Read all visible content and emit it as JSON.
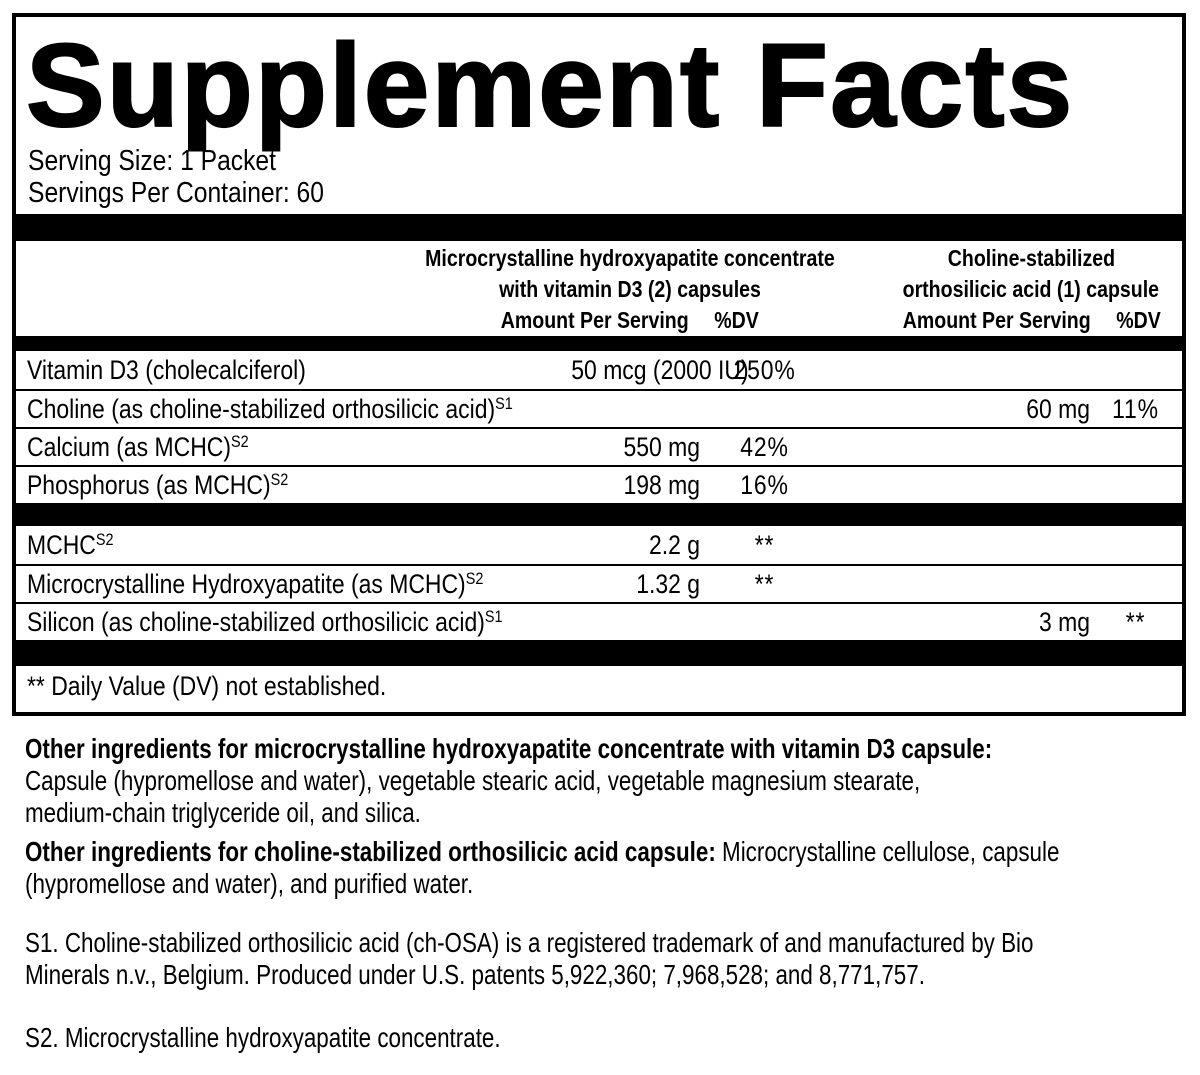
{
  "colors": {
    "ink": "#000000",
    "paper": "#ffffff"
  },
  "panel": {
    "title": "Supplement Facts",
    "serving_size": "Serving Size: 1 Packet",
    "servings_per_container": "Servings Per Container: 60",
    "column_groups": [
      {
        "name_line1": "Microcrystalline hydroxyapatite concentrate",
        "name_line2": "with vitamin D3 (2) capsules",
        "amount_header": "Amount Per Serving",
        "dv_header": "%DV"
      },
      {
        "name_line1": "Choline-stabilized",
        "name_line2": "orthosilicic acid (1) capsule",
        "amount_header": "Amount Per Serving",
        "dv_header": "%DV"
      }
    ],
    "rows": [
      {
        "label": "Vitamin D3 (cholecalciferol)",
        "sup": "",
        "c1_amount": "50 mcg (2000 IU)",
        "c1_dv": "250%",
        "c2_amount": "",
        "c2_dv": ""
      },
      {
        "label": "Choline (as choline-stabilized orthosilicic acid)",
        "sup": "S1",
        "c1_amount": "",
        "c1_dv": "",
        "c2_amount": "60 mg",
        "c2_dv": "11%"
      },
      {
        "label": "Calcium (as MCHC)",
        "sup": "S2",
        "c1_amount": "550 mg",
        "c1_dv": "42%",
        "c2_amount": "",
        "c2_dv": ""
      },
      {
        "label": "Phosphorus (as MCHC)",
        "sup": "S2",
        "c1_amount": "198 mg",
        "c1_dv": "16%",
        "c2_amount": "",
        "c2_dv": ""
      },
      {
        "label": "MCHC",
        "sup": "S2",
        "c1_amount": "2.2 g",
        "c1_dv": "**",
        "c2_amount": "",
        "c2_dv": ""
      },
      {
        "label": "Microcrystalline Hydroxyapatite (as MCHC)",
        "sup": "S2",
        "c1_amount": "1.32 g",
        "c1_dv": "**",
        "c2_amount": "",
        "c2_dv": ""
      },
      {
        "label": "Silicon (as choline-stabilized orthosilicic acid)",
        "sup": "S1",
        "c1_amount": "",
        "c1_dv": "",
        "c2_amount": "3 mg",
        "c2_dv": "**"
      }
    ],
    "dv_note": "** Daily Value (DV) not established."
  },
  "other_ingredients": [
    {
      "lines": [
        {
          "bold": "Other ingredients for microcrystalline hydroxyapatite concentrate with vitamin D3 capsule:",
          "regular": ""
        },
        {
          "bold": "",
          "regular": "Capsule (hypromellose and water), vegetable stearic acid, vegetable magnesium stearate,"
        },
        {
          "bold": "",
          "regular": "medium-chain triglyceride oil, and silica."
        }
      ]
    },
    {
      "lines": [
        {
          "bold": "Other ingredients for choline-stabilized orthosilicic acid capsule:",
          "regular": " Microcrystalline cellulose, capsule"
        },
        {
          "bold": "",
          "regular": "(hypromellose and water), and purified water."
        }
      ]
    }
  ],
  "footnotes": [
    {
      "lines": [
        "S1. Choline-stabilized orthosilicic acid (ch-OSA) is a registered trademark of and manufactured by Bio",
        "Minerals n.v., Belgium. Produced under U.S. patents 5,922,360; 7,968,528; and 8,771,757."
      ]
    },
    {
      "lines": [
        "S2. Microcrystalline hydroxyapatite concentrate."
      ]
    }
  ]
}
